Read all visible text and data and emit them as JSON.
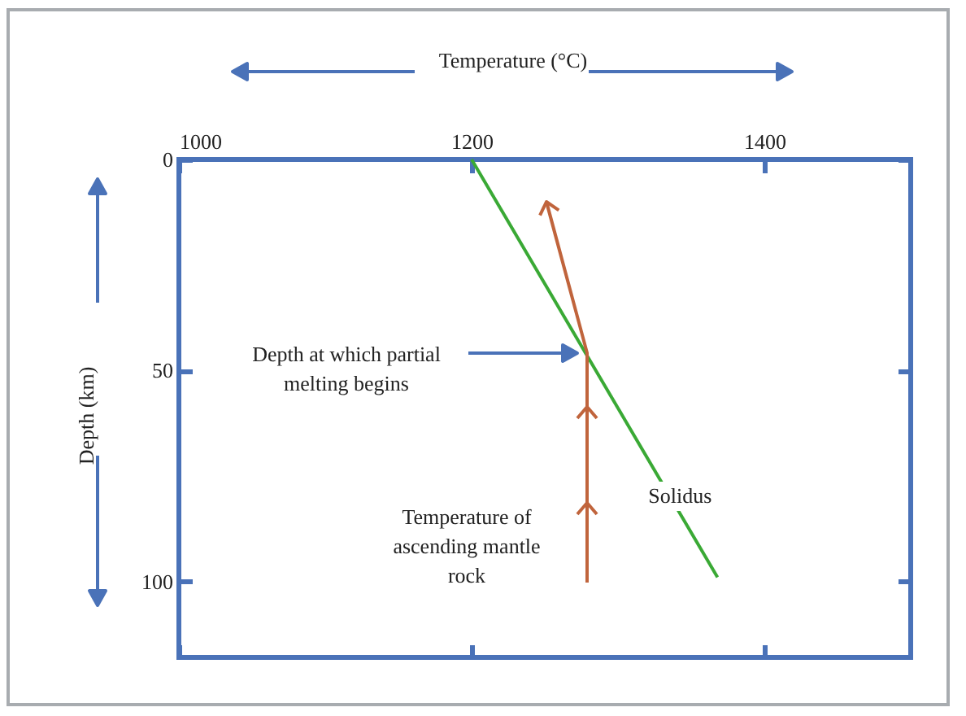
{
  "chart_data": {
    "type": "line",
    "xlabel": "Temperature (°C)",
    "ylabel": "Depth (km)",
    "xlim": [
      1000,
      1500
    ],
    "xticks": [
      1000,
      1200,
      1400
    ],
    "ylim": [
      118,
      0
    ],
    "yticks": [
      0,
      50,
      100
    ],
    "grid": false,
    "marker": "none",
    "line_style": "solid",
    "series": [
      {
        "name": "Solidus",
        "color": "#3aa935",
        "x": [
          1200,
          1368
        ],
        "values": [
          0,
          99
        ]
      }
    ],
    "annotations": [
      "Depth at which partial\nmelting begins",
      "Temperature of\nascending mantle\nrock"
    ]
  }
}
